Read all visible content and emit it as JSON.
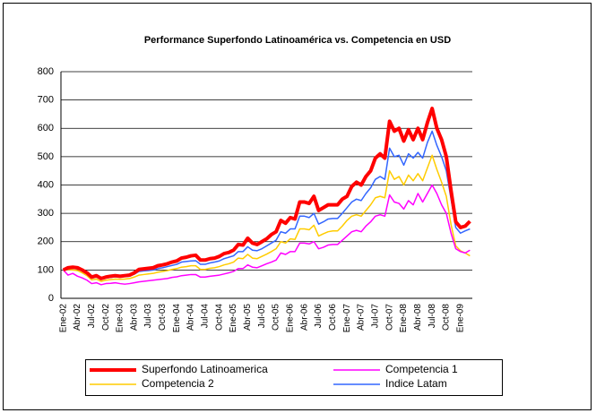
{
  "chart_data": {
    "type": "line",
    "title": "Performance Superfondo Latinoamérica vs. Competencia en USD",
    "categories": [
      "Ene-02",
      null,
      null,
      "Abr-02",
      null,
      null,
      "Jul-02",
      null,
      null,
      "Oct-02",
      null,
      null,
      "Ene-03",
      null,
      null,
      "Abr-03",
      null,
      null,
      "Jul-03",
      null,
      null,
      "Oct-03",
      null,
      null,
      "Ene-04",
      null,
      null,
      "Abr-04",
      null,
      null,
      "Jul-04",
      null,
      null,
      "Oct-04",
      null,
      null,
      "Ene-05",
      null,
      null,
      "Abr-05",
      null,
      null,
      "Jul-05",
      null,
      null,
      "Oct-05",
      null,
      null,
      "Ene-06",
      null,
      null,
      "Abr-06",
      null,
      null,
      "Jul-06",
      null,
      null,
      "Oct-06",
      null,
      null,
      "Ene-07",
      null,
      null,
      "Abr-07",
      null,
      null,
      "Jul-07",
      null,
      null,
      "Oct-07",
      null,
      null,
      "Ene-08",
      null,
      null,
      "Abr-08",
      null,
      null,
      "Jul-08",
      null,
      null,
      "Oct-08",
      null,
      null,
      "Ene-09",
      null,
      null
    ],
    "series": [
      {
        "name": "Superfondo Latinoamerica",
        "color": "#ff0000",
        "width": 4,
        "values": [
          100,
          108,
          110,
          108,
          100,
          90,
          75,
          80,
          70,
          75,
          78,
          80,
          78,
          80,
          82,
          90,
          102,
          104,
          106,
          108,
          115,
          118,
          122,
          128,
          132,
          142,
          145,
          150,
          152,
          135,
          135,
          140,
          142,
          148,
          158,
          162,
          170,
          190,
          188,
          212,
          195,
          190,
          200,
          210,
          225,
          235,
          275,
          265,
          285,
          280,
          340,
          340,
          335,
          360,
          310,
          320,
          330,
          330,
          330,
          350,
          360,
          395,
          410,
          400,
          430,
          450,
          495,
          510,
          495,
          625,
          590,
          600,
          555,
          595,
          560,
          600,
          560,
          620,
          670,
          600,
          560,
          500,
          380,
          270,
          250,
          255,
          272
        ]
      },
      {
        "name": "Competencia 1",
        "color": "#ff00ff",
        "width": 1.5,
        "values": [
          100,
          82,
          88,
          78,
          72,
          64,
          52,
          55,
          48,
          52,
          53,
          55,
          52,
          50,
          52,
          55,
          58,
          60,
          62,
          64,
          66,
          68,
          70,
          74,
          76,
          80,
          82,
          84,
          84,
          75,
          75,
          78,
          80,
          82,
          86,
          90,
          95,
          105,
          105,
          118,
          110,
          108,
          115,
          122,
          128,
          135,
          160,
          155,
          165,
          165,
          195,
          195,
          192,
          200,
          175,
          180,
          188,
          190,
          190,
          205,
          220,
          235,
          240,
          235,
          255,
          270,
          290,
          295,
          290,
          365,
          340,
          335,
          315,
          345,
          330,
          370,
          340,
          370,
          400,
          370,
          330,
          300,
          230,
          175,
          165,
          160,
          170
        ]
      },
      {
        "name": "Competencia 2",
        "color": "#ffcc00",
        "width": 1.5,
        "values": [
          100,
          102,
          100,
          98,
          90,
          80,
          65,
          68,
          60,
          64,
          66,
          68,
          67,
          68,
          70,
          75,
          82,
          84,
          86,
          88,
          92,
          95,
          98,
          102,
          105,
          110,
          112,
          115,
          115,
          102,
          102,
          106,
          108,
          112,
          118,
          122,
          128,
          142,
          140,
          155,
          142,
          140,
          148,
          156,
          165,
          175,
          200,
          195,
          210,
          208,
          245,
          245,
          242,
          258,
          220,
          228,
          235,
          238,
          238,
          255,
          275,
          290,
          295,
          290,
          310,
          330,
          355,
          360,
          355,
          450,
          420,
          430,
          400,
          435,
          415,
          440,
          415,
          460,
          505,
          455,
          410,
          360,
          260,
          185,
          168,
          160,
          150
        ]
      },
      {
        "name": "Indice Latam",
        "color": "#3366ff",
        "width": 1.5,
        "values": [
          100,
          105,
          106,
          104,
          97,
          88,
          72,
          75,
          68,
          72,
          74,
          76,
          75,
          77,
          78,
          85,
          95,
          97,
          98,
          100,
          105,
          108,
          112,
          116,
          120,
          128,
          130,
          132,
          133,
          120,
          120,
          125,
          128,
          132,
          140,
          145,
          150,
          165,
          165,
          182,
          170,
          168,
          175,
          185,
          195,
          205,
          235,
          230,
          245,
          245,
          290,
          290,
          285,
          300,
          262,
          270,
          280,
          282,
          282,
          300,
          320,
          340,
          350,
          345,
          370,
          390,
          420,
          430,
          420,
          530,
          500,
          505,
          470,
          510,
          495,
          515,
          495,
          550,
          590,
          540,
          500,
          450,
          350,
          250,
          230,
          238,
          245
        ]
      }
    ],
    "ylim": [
      0,
      800
    ],
    "yticks": [
      0,
      100,
      200,
      300,
      400,
      500,
      600,
      700,
      800
    ],
    "grid": true
  }
}
